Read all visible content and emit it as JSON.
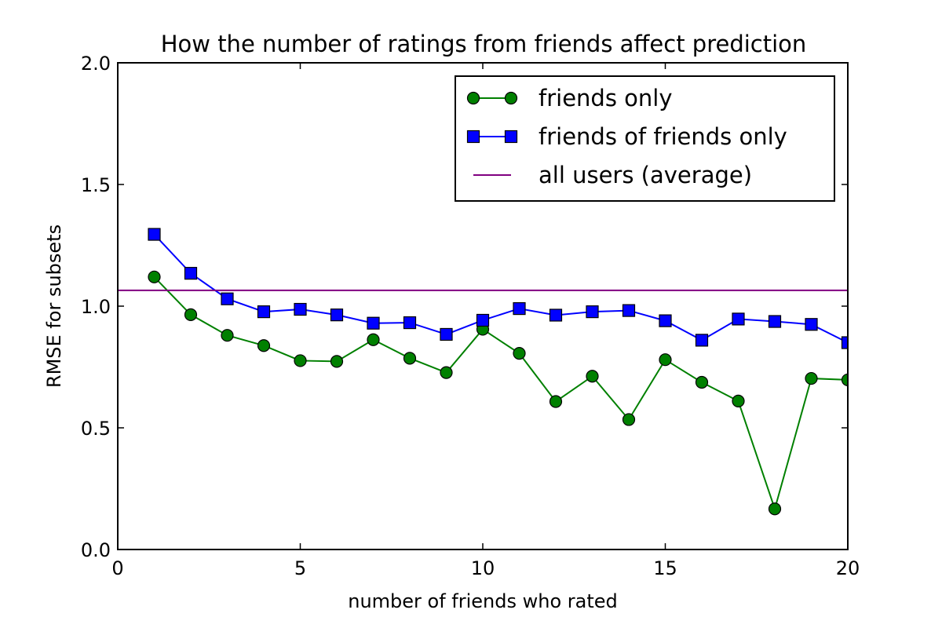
{
  "chart_data": {
    "type": "line",
    "title": "How the number of ratings from friends affect prediction",
    "xlabel": "number of friends who rated",
    "ylabel": "RMSE for subsets",
    "xlim": [
      0,
      20
    ],
    "ylim": [
      0.0,
      2.0
    ],
    "xticks": [
      {
        "value": 0,
        "label": "0"
      },
      {
        "value": 5,
        "label": "5"
      },
      {
        "value": 10,
        "label": "10"
      },
      {
        "value": 15,
        "label": "15"
      },
      {
        "value": 20,
        "label": "20"
      }
    ],
    "yticks": [
      {
        "value": 0.0,
        "label": "0.0"
      },
      {
        "value": 0.5,
        "label": "0.5"
      },
      {
        "value": 1.0,
        "label": "1.0"
      },
      {
        "value": 1.5,
        "label": "1.5"
      },
      {
        "value": 2.0,
        "label": "2.0"
      }
    ],
    "grid": false,
    "legend_position": "top-right",
    "series": [
      {
        "name": "friends only",
        "color": "#008000",
        "marker": "circle",
        "x": [
          1,
          2,
          3,
          4,
          5,
          6,
          7,
          8,
          9,
          10,
          11,
          12,
          13,
          14,
          15,
          16,
          17,
          18,
          19,
          20
        ],
        "values": [
          1.12,
          0.965,
          0.88,
          0.838,
          0.776,
          0.773,
          0.862,
          0.786,
          0.727,
          0.905,
          0.806,
          0.608,
          0.712,
          0.534,
          0.78,
          0.687,
          0.61,
          0.167,
          0.703,
          0.697
        ]
      },
      {
        "name": "friends of friends only",
        "color": "#0000ff",
        "marker": "square",
        "x": [
          1,
          2,
          3,
          4,
          5,
          6,
          7,
          8,
          9,
          10,
          11,
          12,
          13,
          14,
          15,
          16,
          17,
          18,
          19,
          20
        ],
        "values": [
          1.295,
          1.135,
          1.03,
          0.977,
          0.987,
          0.964,
          0.93,
          0.932,
          0.884,
          0.942,
          0.99,
          0.963,
          0.977,
          0.982,
          0.94,
          0.86,
          0.947,
          0.937,
          0.925,
          0.85
        ]
      },
      {
        "name": "all users (average)",
        "color": "#800080",
        "marker": "none",
        "type": "hline",
        "value": 1.065
      }
    ]
  }
}
